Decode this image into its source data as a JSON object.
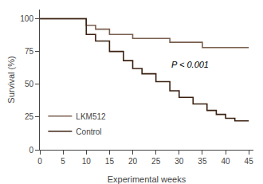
{
  "chart_data": {
    "type": "line",
    "x_label": "Experimental weeks",
    "y_label": "Survival (%)",
    "series": [
      {
        "name": "LKM512",
        "color": "#7a6050",
        "x": [
          0,
          10,
          10,
          12,
          12,
          15,
          15,
          20,
          20,
          28,
          28,
          35,
          35,
          45
        ],
        "values": [
          100,
          100,
          95,
          95,
          92,
          92,
          88,
          88,
          85,
          85,
          82,
          82,
          78,
          78
        ]
      },
      {
        "name": "Control",
        "color": "#3a2010",
        "x": [
          0,
          10,
          10,
          12,
          12,
          15,
          15,
          18,
          18,
          20,
          20,
          22,
          22,
          25,
          25,
          28,
          28,
          30,
          30,
          33,
          33,
          36,
          36,
          38,
          38,
          40,
          40,
          42,
          42,
          45
        ],
        "values": [
          100,
          100,
          88,
          88,
          83,
          83,
          75,
          75,
          68,
          68,
          62,
          62,
          58,
          58,
          52,
          52,
          45,
          45,
          40,
          40,
          35,
          35,
          30,
          30,
          27,
          27,
          24,
          24,
          22,
          22
        ]
      }
    ],
    "xlim": [
      0,
      46
    ],
    "ylim": [
      0,
      107
    ],
    "xticks": [
      0,
      5,
      10,
      15,
      20,
      25,
      30,
      35,
      40,
      45
    ],
    "yticks": [
      0,
      25,
      50,
      75,
      100
    ],
    "annotations": [
      {
        "text": "P < 0.001",
        "x": 28,
        "y": 60
      }
    ],
    "legend": "lower left",
    "grid": false
  }
}
